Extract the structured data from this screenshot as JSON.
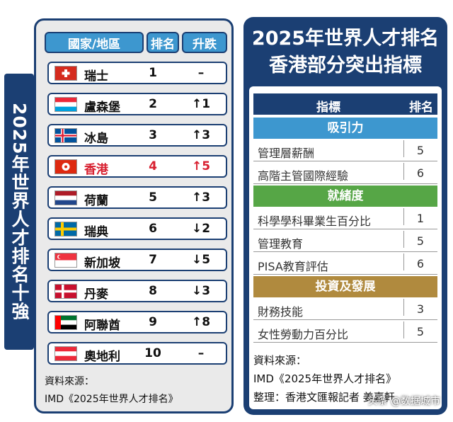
{
  "side_title": "2025年世界人才排名十強",
  "left": {
    "headers": {
      "country": "國家/地區",
      "rank": "排名",
      "change": "升跌"
    },
    "rows": [
      {
        "name": "瑞士",
        "rank": "1",
        "change": "–",
        "flag": "ch"
      },
      {
        "name": "盧森堡",
        "rank": "2",
        "change": "↑1",
        "flag": "lu"
      },
      {
        "name": "冰島",
        "rank": "3",
        "change": "↑3",
        "flag": "is"
      },
      {
        "name": "香港",
        "rank": "4",
        "change": "↑5",
        "flag": "hk",
        "highlight": true
      },
      {
        "name": "荷蘭",
        "rank": "5",
        "change": "↑3",
        "flag": "nl"
      },
      {
        "name": "瑞典",
        "rank": "6",
        "change": "↓2",
        "flag": "se"
      },
      {
        "name": "新加坡",
        "rank": "7",
        "change": "↓5",
        "flag": "sg"
      },
      {
        "name": "丹麥",
        "rank": "8",
        "change": "↓3",
        "flag": "dk"
      },
      {
        "name": "阿聯酋",
        "rank": "9",
        "change": "↑8",
        "flag": "ae"
      },
      {
        "name": "奧地利",
        "rank": "10",
        "change": "–",
        "flag": "at"
      }
    ],
    "source_label": "資料來源：",
    "source_text": "IMD《2025年世界人才排名》"
  },
  "right": {
    "title_line1": "2025年世界人才排名",
    "title_line2": "香港部分突出指標",
    "head_indicator": "指標",
    "head_rank": "排名",
    "sections": [
      {
        "label": "吸引力",
        "color": "#3d97cf",
        "items": [
          {
            "indicator": "管理層薪酬",
            "rank": "5"
          },
          {
            "indicator": "高階主管國際經驗",
            "rank": "6"
          }
        ]
      },
      {
        "label": "就緒度",
        "color": "#56a646",
        "items": [
          {
            "indicator": "科學學科畢業生百分比",
            "rank": "1"
          },
          {
            "indicator": "管理教育",
            "rank": "5"
          },
          {
            "indicator": "PISA教育評估",
            "rank": "6"
          }
        ]
      },
      {
        "label": "投資及發展",
        "color": "#b08a3e",
        "items": [
          {
            "indicator": "財務技能",
            "rank": "3"
          },
          {
            "indicator": "女性勞動力百分比",
            "rank": "5"
          }
        ]
      }
    ],
    "source_label": "資料來源：",
    "source_text": "IMD《2025年世界人才排名》",
    "editor": "整理：香港文匯報記者 姜嘉軒"
  },
  "watermark": "头条 @数据城市"
}
